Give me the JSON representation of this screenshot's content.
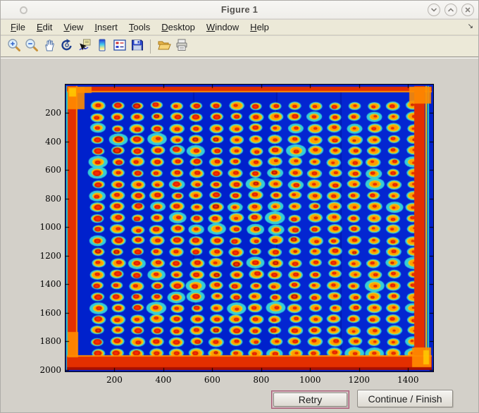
{
  "window": {
    "title": "Figure 1",
    "controls": [
      {
        "name": "minimize",
        "icon": "chevron-down-icon"
      },
      {
        "name": "maximize",
        "icon": "chevron-up-icon"
      },
      {
        "name": "close",
        "icon": "x-icon"
      }
    ]
  },
  "menu_bar": {
    "items": [
      {
        "label": "File"
      },
      {
        "label": "Edit"
      },
      {
        "label": "View"
      },
      {
        "label": "Insert"
      },
      {
        "label": "Tools"
      },
      {
        "label": "Desktop"
      },
      {
        "label": "Window"
      },
      {
        "label": "Help"
      }
    ]
  },
  "toolbar": {
    "buttons": [
      {
        "name": "zoom-in"
      },
      {
        "name": "zoom-out"
      },
      {
        "name": "pan"
      },
      {
        "name": "rotate-3d"
      },
      {
        "name": "data-cursor"
      },
      {
        "name": "colorbar"
      },
      {
        "name": "insert-legend"
      },
      {
        "name": "save"
      },
      {
        "name": "open"
      },
      {
        "name": "print"
      }
    ]
  },
  "chart_data": {
    "type": "heatmap",
    "title": "",
    "xlabel": "",
    "ylabel": "",
    "colormap": "jet",
    "description": "Scanned microtiter-plate / microarray intensity image: regular grid of spots (red cores, yellow-orange rings, cyan halos) on saturated blue background, with bright red saturated bands along all four image edges",
    "x_range": [
      0,
      1503
    ],
    "y_range": [
      0,
      2010
    ],
    "x_ticks": [
      200,
      400,
      600,
      800,
      1000,
      1200,
      1400
    ],
    "y_ticks": [
      200,
      400,
      600,
      800,
      1000,
      1200,
      1400,
      1600,
      1800,
      2000
    ],
    "y_axis_direction": "down",
    "grid_lines": false,
    "spot_grid": {
      "rows": 23,
      "cols": 17
    },
    "colors": {
      "background": "#0021cc",
      "background_light": "#0a36e8",
      "spot_halo": "#38d8d8",
      "spot_ring_outer": "#ffd200",
      "spot_ring_inner": "#ff9100",
      "spot_core": "#d81e00",
      "spot_core_bright": "#ff2d00",
      "edge_band": "#e32f00",
      "edge_accent": "#ff8c00",
      "edge_dark": "#a80f00",
      "edge_cyan": "#2ad0c0",
      "edge_yellow": "#ffd000"
    }
  },
  "action_bar": {
    "retry_label": "Retry",
    "continue_label": "Continue / Finish"
  }
}
